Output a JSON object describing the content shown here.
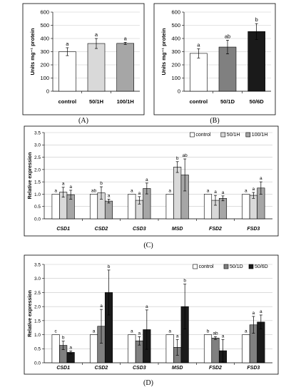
{
  "chart_data": [
    {
      "id": "A",
      "panel_label": "(A)",
      "type": "bar",
      "categories": [
        "control",
        "50/1H",
        "100/1H"
      ],
      "values": [
        300,
        362,
        363
      ],
      "errors": [
        30,
        38,
        8
      ],
      "letters": [
        "a",
        "a",
        "a"
      ],
      "colors": [
        "#ffffff",
        "#d9d9d9",
        "#a6a6a6"
      ],
      "ylabel": "Units mg⁻¹ protein",
      "ylim": [
        0,
        600
      ],
      "yticks": [
        0,
        100,
        200,
        300,
        400,
        500,
        600
      ],
      "ytick_labels": [
        "0",
        "100",
        "200",
        "300",
        "400",
        "500",
        "600"
      ],
      "grid": true,
      "legend": false
    },
    {
      "id": "B",
      "panel_label": "(B)",
      "type": "bar",
      "categories": [
        "control",
        "50/1D",
        "50/6D"
      ],
      "values": [
        287,
        335,
        453
      ],
      "errors": [
        35,
        52,
        60
      ],
      "letters": [
        "a",
        "ab",
        "b"
      ],
      "colors": [
        "#ffffff",
        "#808080",
        "#1a1a1a"
      ],
      "ylabel": "Units mg⁻¹ protein",
      "ylim": [
        0,
        600
      ],
      "yticks": [
        0,
        100,
        200,
        300,
        400,
        500,
        600
      ],
      "ytick_labels": [
        "0",
        "100",
        "200",
        "300",
        "400",
        "500",
        "600"
      ],
      "grid": true,
      "legend": false
    },
    {
      "id": "C",
      "panel_label": "(C)",
      "type": "bar",
      "categories": [
        "CSD1",
        "CSD2",
        "CSD3",
        "MSD",
        "FSD2",
        "FSD3"
      ],
      "series": [
        {
          "name": "control",
          "color": "#ffffff",
          "values": [
            1.0,
            1.0,
            1.0,
            1.0,
            1.0,
            1.0
          ],
          "errors": [
            0,
            0,
            0,
            0,
            0,
            0
          ],
          "letters": [
            "a",
            "ab",
            "a",
            "a",
            "a",
            "a"
          ]
        },
        {
          "name": "50/1H",
          "color": "#d9d9d9",
          "values": [
            1.08,
            1.05,
            0.75,
            2.1,
            0.75,
            0.95
          ],
          "errors": [
            0.2,
            0.25,
            0.15,
            0.22,
            0.2,
            0.12
          ],
          "letters": [
            "a",
            "b",
            "a",
            "b",
            "a",
            "a"
          ]
        },
        {
          "name": "100/1H",
          "color": "#a6a6a6",
          "values": [
            0.98,
            0.72,
            1.23,
            1.78,
            0.83,
            1.25
          ],
          "errors": [
            0.18,
            0.08,
            0.22,
            0.65,
            0.1,
            0.25
          ],
          "letters": [
            "a",
            "a",
            "a",
            "ab",
            "a",
            "a"
          ]
        }
      ],
      "ylabel": "Relative expression",
      "ylim": [
        0,
        3.5
      ],
      "yticks": [
        0,
        0.5,
        1,
        1.5,
        2,
        2.5,
        3,
        3.5
      ],
      "ytick_labels": [
        "0.0",
        "0.5",
        "1.0",
        "1.5",
        "2.0",
        "2.5",
        "3.0",
        "3.5"
      ],
      "grid": true,
      "legend": "top-right"
    },
    {
      "id": "D",
      "panel_label": "(D)",
      "type": "bar",
      "categories": [
        "CSD1",
        "CSD2",
        "CSD3",
        "MSD",
        "FSD2",
        "FSD3"
      ],
      "series": [
        {
          "name": "control",
          "color": "#ffffff",
          "values": [
            1.0,
            1.0,
            1.0,
            1.0,
            1.0,
            1.0
          ],
          "errors": [
            0,
            0,
            0,
            0,
            0,
            0
          ],
          "letters": [
            "c",
            "a",
            "a",
            "a",
            "b",
            "a"
          ]
        },
        {
          "name": "50/1D",
          "color": "#808080",
          "values": [
            0.62,
            1.3,
            0.78,
            0.55,
            0.88,
            1.35
          ],
          "errors": [
            0.15,
            0.6,
            0.15,
            0.28,
            0.05,
            0.3
          ],
          "letters": [
            "b",
            "a",
            "a",
            "a",
            "ab",
            "a"
          ]
        },
        {
          "name": "50/6D",
          "color": "#1a1a1a",
          "values": [
            0.37,
            2.5,
            1.18,
            2.0,
            0.43,
            1.45
          ],
          "errors": [
            0.05,
            0.8,
            0.7,
            0.8,
            0.4,
            0.25
          ],
          "letters": [
            "a",
            "b",
            "a",
            "b",
            "a",
            "a"
          ]
        }
      ],
      "ylabel": "Relative expression",
      "ylim": [
        0,
        3.5
      ],
      "yticks": [
        0,
        0.5,
        1,
        1.5,
        2,
        2.5,
        3,
        3.5
      ],
      "ytick_labels": [
        "0.0",
        "0.5",
        "1.0",
        "1.5",
        "2.0",
        "2.5",
        "3.0",
        "3.5"
      ],
      "grid": true,
      "legend": "top-right"
    }
  ]
}
